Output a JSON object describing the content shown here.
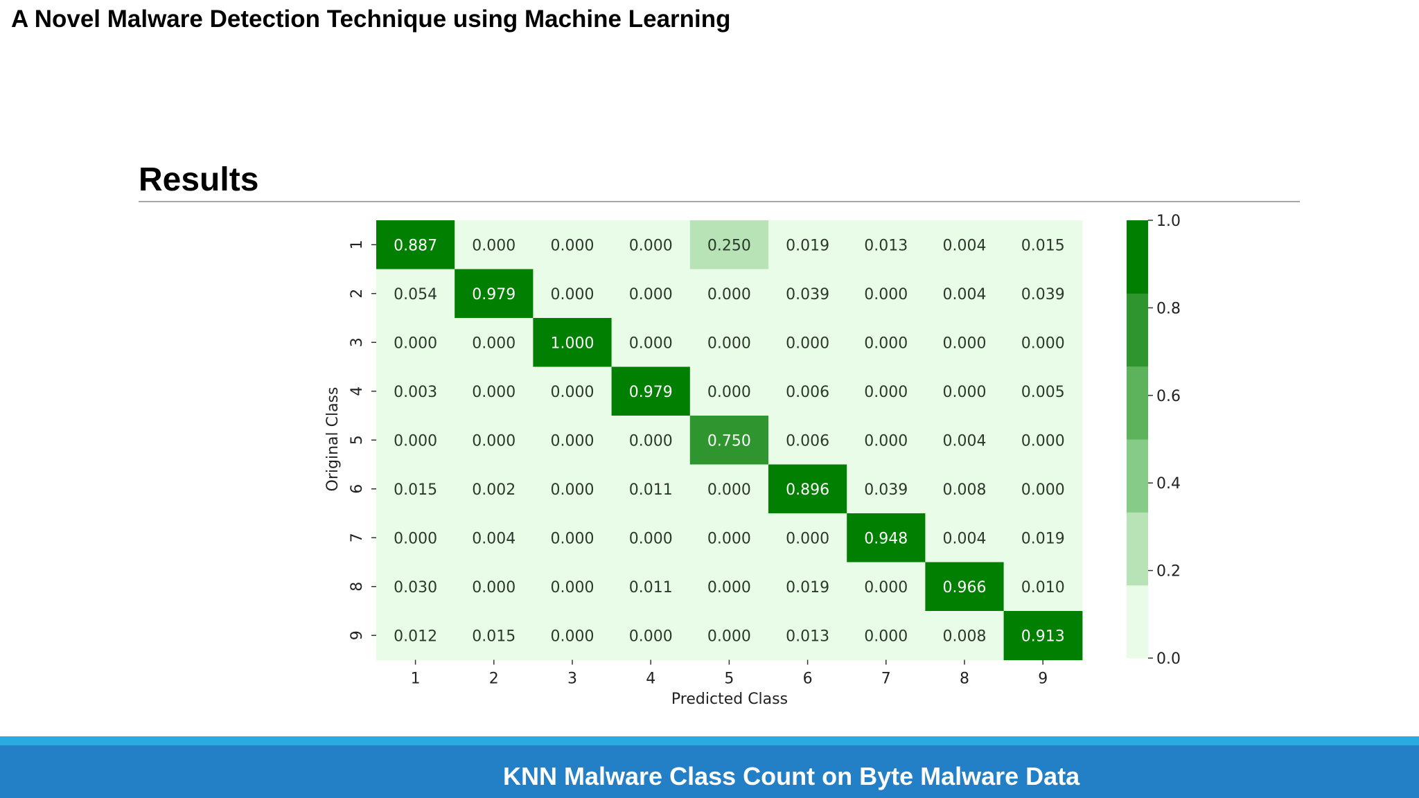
{
  "header": {
    "title": "A Novel Malware Detection Technique using Machine Learning"
  },
  "section": {
    "title": "Results"
  },
  "footer": {
    "caption": "KNN Malware Class Count on Byte Malware Data"
  },
  "chart_data": {
    "type": "heatmap",
    "xlabel": "Predicted Class",
    "ylabel": "Original Class",
    "x_categories": [
      "1",
      "2",
      "3",
      "4",
      "5",
      "6",
      "7",
      "8",
      "9"
    ],
    "y_categories": [
      "1",
      "2",
      "3",
      "4",
      "5",
      "6",
      "7",
      "8",
      "9"
    ],
    "values": [
      [
        0.887,
        0.0,
        0.0,
        0.0,
        0.25,
        0.019,
        0.013,
        0.004,
        0.015
      ],
      [
        0.054,
        0.979,
        0.0,
        0.0,
        0.0,
        0.039,
        0.0,
        0.004,
        0.039
      ],
      [
        0.0,
        0.0,
        1.0,
        0.0,
        0.0,
        0.0,
        0.0,
        0.0,
        0.0
      ],
      [
        0.003,
        0.0,
        0.0,
        0.979,
        0.0,
        0.006,
        0.0,
        0.0,
        0.005
      ],
      [
        0.0,
        0.0,
        0.0,
        0.0,
        0.75,
        0.006,
        0.0,
        0.004,
        0.0
      ],
      [
        0.015,
        0.002,
        0.0,
        0.011,
        0.0,
        0.896,
        0.039,
        0.008,
        0.0
      ],
      [
        0.0,
        0.004,
        0.0,
        0.0,
        0.0,
        0.0,
        0.948,
        0.004,
        0.019
      ],
      [
        0.03,
        0.0,
        0.0,
        0.011,
        0.0,
        0.019,
        0.0,
        0.966,
        0.01
      ],
      [
        0.012,
        0.015,
        0.0,
        0.0,
        0.0,
        0.013,
        0.0,
        0.008,
        0.913
      ]
    ],
    "value_format": "3 decimals",
    "colorbar": {
      "range": [
        0.0,
        1.0
      ],
      "ticks": [
        "0.0",
        "0.2",
        "0.4",
        "0.6",
        "0.8",
        "1.0"
      ],
      "bins": 6,
      "colors": [
        "#e8fce8",
        "#b7e3b7",
        "#86cc86",
        "#5cb35c",
        "#2f962f",
        "#007f00"
      ]
    },
    "colors": {
      "text_dark": "#2a3a2a",
      "text_light": "#ffffff"
    }
  }
}
